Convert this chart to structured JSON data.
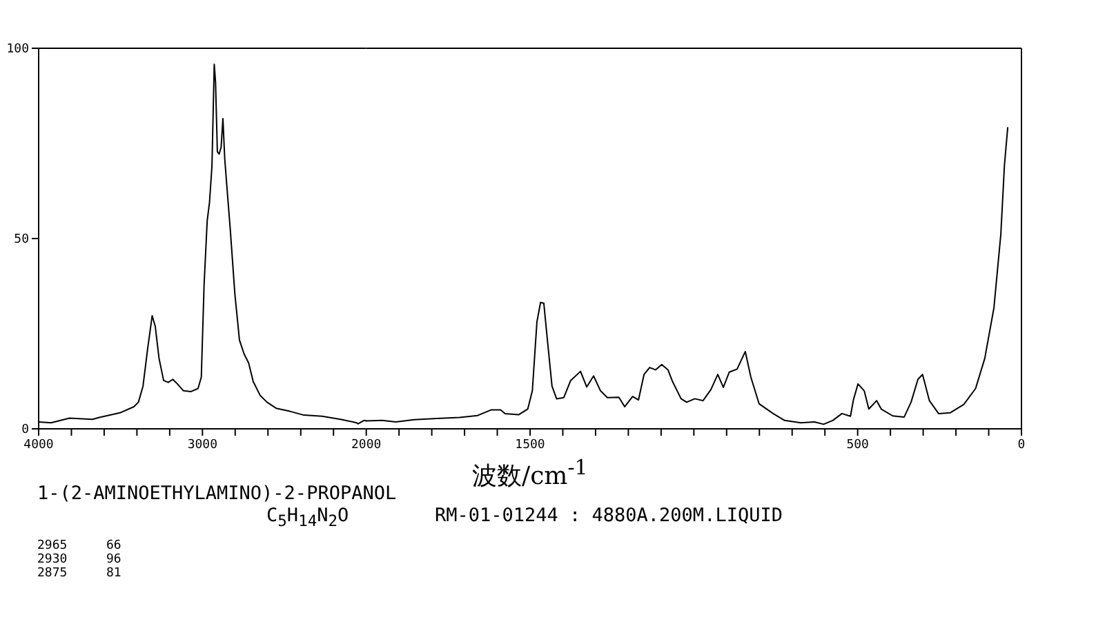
{
  "chart_data": [
    {
      "type": "line",
      "xlabel": "波数/cm$^{-1}$",
      "x": [
        4000,
        3924,
        3812,
        3672,
        3630,
        3504,
        3419,
        3391,
        3363,
        3335,
        3307,
        3288,
        3265,
        3237,
        3209,
        3181,
        3153,
        3116,
        3069,
        3027,
        3007,
        2990,
        2971,
        2957,
        2942,
        2928,
        2920,
        2909,
        2898,
        2886,
        2875,
        2864,
        2850,
        2830,
        2802,
        2774,
        2746,
        2718,
        2690,
        2648,
        2606,
        2550,
        2466,
        2381,
        2269,
        2157,
        2059,
        2051,
        2014,
        2000
      ],
      "values": [
        1.8,
        1.6,
        2.8,
        2.5,
        3.0,
        4.2,
        5.8,
        7.0,
        11.2,
        20.9,
        29.7,
        26.9,
        18.5,
        12.7,
        12.2,
        13.0,
        11.8,
        10.0,
        9.8,
        10.6,
        13.6,
        37.8,
        54.7,
        59.5,
        69,
        95.8,
        91,
        72.8,
        72.2,
        74,
        81.5,
        71,
        63.2,
        52.3,
        35.4,
        23.3,
        19.7,
        17.3,
        12.4,
        8.8,
        7.0,
        5.4,
        4.6,
        3.6,
        3.3,
        2.5,
        1.6,
        1.3,
        2.2,
        2.1
      ],
      "color": "#000000",
      "xlim": [
        4000,
        2000
      ],
      "xticks": [
        4000,
        {
          "value": 3800,
          "label": null
        },
        {
          "value": 3600,
          "label": null
        },
        {
          "value": 3400,
          "label": null
        },
        {
          "value": 3200,
          "label": null
        },
        3000,
        {
          "value": 2800,
          "label": null
        },
        {
          "value": 2600,
          "label": null
        },
        {
          "value": 2400,
          "label": null
        },
        {
          "value": 2200,
          "label": null
        },
        2000
      ],
      "ylim": [
        0,
        100
      ],
      "yticks": [
        0,
        50,
        100
      ],
      "annotations": [
        "1-(2-AMINOETHYLAMINO)-2-PROPANOL",
        "C$_{5}$H$_{14}$N$_{2}$O",
        "RM-01-01244 : 4880A.200M.LIQUID",
        "2965",
        "66",
        "2930",
        "96",
        "2875",
        "81"
      ]
    },
    {
      "type": "line",
      "x": [
        2000,
        1951,
        1910,
        1854,
        1785,
        1715,
        1660,
        1618,
        1590,
        1576,
        1535,
        1507,
        1493,
        1479,
        1468,
        1458,
        1447,
        1433,
        1419,
        1397,
        1376,
        1346,
        1327,
        1306,
        1285,
        1264,
        1229,
        1211,
        1187,
        1169,
        1152,
        1135,
        1117,
        1098,
        1079,
        1065,
        1039,
        1022,
        997,
        972,
        948,
        927,
        910,
        892,
        868,
        843,
        826,
        801,
        758,
        723,
        674,
        632,
        604,
        576,
        548,
        522,
        513,
        499,
        480,
        466,
        442,
        428,
        393,
        358,
        337,
        316,
        302,
        281,
        253,
        218,
        176,
        140,
        112,
        84,
        63,
        52,
        42
      ],
      "values": [
        2.1,
        2.2,
        1.8,
        2.4,
        2.7,
        3.0,
        3.5,
        5.0,
        5.0,
        4.0,
        3.7,
        5.2,
        10.0,
        28.1,
        33.2,
        33.0,
        23.3,
        11.2,
        7.9,
        8.2,
        12.7,
        15.1,
        11.0,
        13.9,
        10.0,
        8.2,
        8.3,
        5.8,
        8.5,
        7.6,
        14.3,
        16.1,
        15.5,
        16.9,
        15.5,
        12.4,
        7.9,
        7.0,
        7.9,
        7.4,
        10.3,
        14.3,
        10.9,
        14.9,
        15.7,
        20.3,
        13.6,
        6.6,
        4.0,
        2.2,
        1.6,
        1.8,
        1.2,
        2.2,
        4.0,
        3.3,
        7.6,
        11.8,
        10.0,
        5.2,
        7.4,
        5.2,
        3.4,
        3.1,
        7.0,
        13.0,
        14.3,
        7.4,
        4.0,
        4.2,
        6.4,
        10.6,
        18.5,
        31.8,
        51.1,
        69.2,
        79.1
      ],
      "color": "#000000",
      "xlim": [
        2000,
        0
      ],
      "xticks": [
        {
          "value": 1900,
          "label": null
        },
        {
          "value": 1800,
          "label": null
        },
        {
          "value": 1700,
          "label": null
        },
        {
          "value": 1600,
          "label": null
        },
        1500,
        {
          "value": 1400,
          "label": null
        },
        {
          "value": 1300,
          "label": null
        },
        {
          "value": 1200,
          "label": null
        },
        {
          "value": 1100,
          "label": null
        },
        {
          "value": 1000,
          "label": null
        },
        {
          "value": 900,
          "label": null
        },
        {
          "value": 800,
          "label": null
        },
        {
          "value": 700,
          "label": null
        },
        {
          "value": 600,
          "label": null
        },
        500,
        {
          "value": 400,
          "label": null
        },
        {
          "value": 300,
          "label": null
        },
        {
          "value": 200,
          "label": null
        },
        {
          "value": 100,
          "label": null
        },
        0
      ],
      "ylim": [
        0,
        100
      ],
      "tick_labels": "x"
    }
  ]
}
